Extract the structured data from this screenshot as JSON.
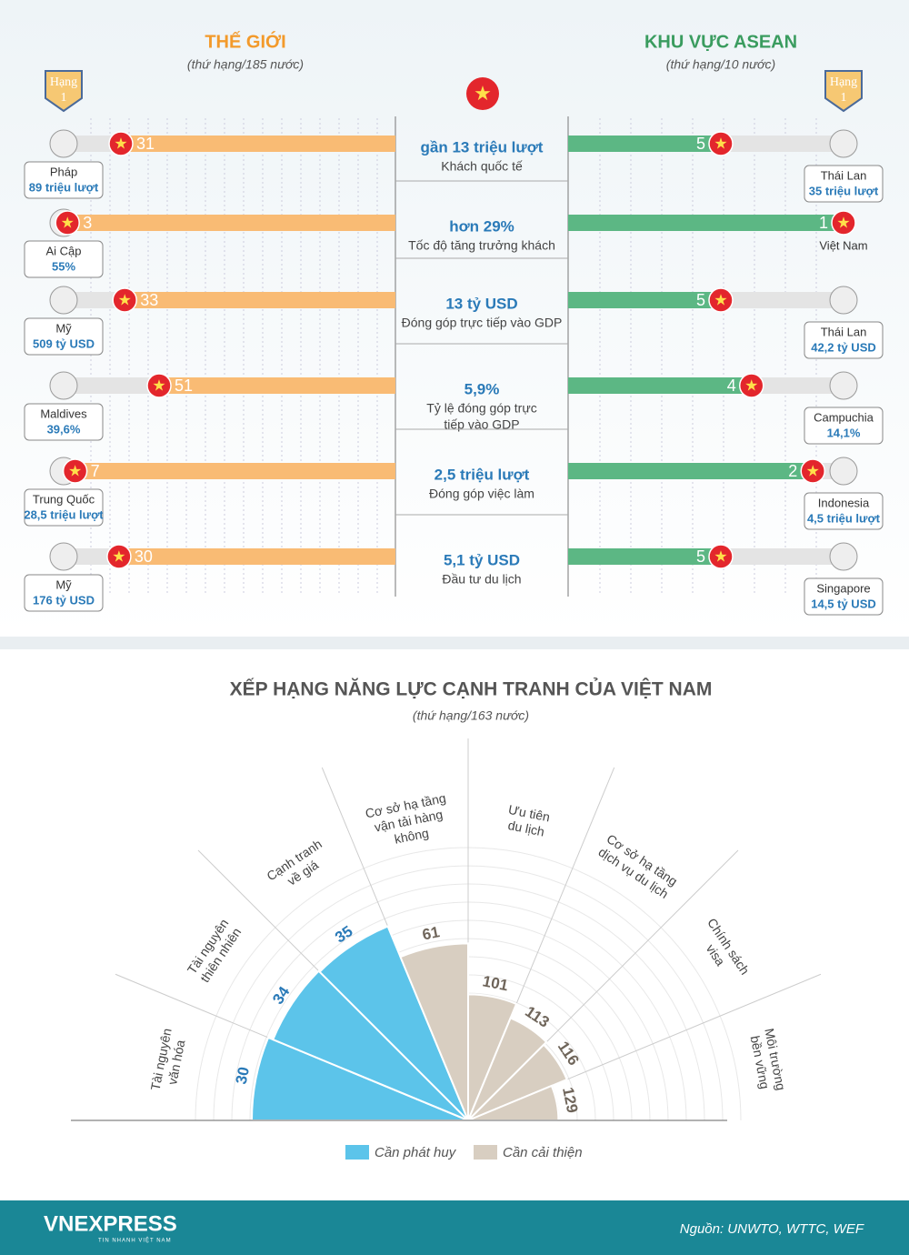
{
  "comparison": {
    "world": {
      "title": "THẾ GIỚI",
      "subtitle": "(thứ hạng/185 nước)"
    },
    "asean": {
      "title": "KHU VỰC ASEAN",
      "subtitle": "(thứ hạng/10 nước)"
    },
    "badge": {
      "label": "Hạng",
      "rank": 1
    },
    "rows": [
      {
        "world_rank": 31,
        "world_country": "Pháp",
        "world_value": "89 triệu lượt",
        "metric_value": "gần 13 triệu lượt",
        "metric": [
          "Khách quốc tế"
        ],
        "asean_rank": 5,
        "asean_country": "Thái Lan",
        "asean_value": "35 triệu lượt"
      },
      {
        "world_rank": 3,
        "world_country": "Ai Cập",
        "world_value": "55%",
        "metric_value": "hơn 29%",
        "metric": [
          "Tốc độ tăng trưởng khách"
        ],
        "asean_rank": 1,
        "asean_country": "Việt Nam"
      },
      {
        "world_rank": 33,
        "world_country": "Mỹ",
        "world_value": "509 tỷ USD",
        "metric_value": "13 tỷ USD",
        "metric": [
          "Đóng góp trực tiếp vào GDP"
        ],
        "asean_rank": 5,
        "asean_country": "Thái Lan",
        "asean_value": "42,2 tỷ USD"
      },
      {
        "world_rank": 51,
        "world_country": "Maldives",
        "world_value": "39,6%",
        "metric_value": "5,9%",
        "metric": [
          "Tỷ lệ đóng góp trực",
          "tiếp vào GDP"
        ],
        "asean_rank": 4,
        "asean_country": "Campuchia",
        "asean_value": "14,1%"
      },
      {
        "world_rank": 7,
        "world_country": "Trung Quốc",
        "world_value": "28,5 triệu lượt",
        "metric_value": "2,5 triệu lượt",
        "metric": [
          "Đóng góp việc làm"
        ],
        "asean_rank": 2,
        "asean_country": "Indonesia",
        "asean_value": "4,5 triệu lượt"
      },
      {
        "world_rank": 30,
        "world_country": "Mỹ",
        "world_value": "176 tỷ USD",
        "metric_value": "5,1 tỷ USD",
        "metric": [
          "Đầu tư du lịch"
        ],
        "asean_rank": 5,
        "asean_country": "Singapore",
        "asean_value": "14,5 tỷ USD"
      }
    ]
  },
  "chart_data": {
    "type": "radial-bar",
    "title": "XẾP HẠNG NĂNG LỰC CẠNH TRANH CỦA VIỆT NAM",
    "subtitle": "(thứ hạng/163 nước)",
    "categories": [
      [
        "Tài nguyên",
        "văn hóa"
      ],
      [
        "Tài nguyên",
        "thiên nhiên"
      ],
      [
        "Cạnh tranh",
        "về giá"
      ],
      [
        "Cơ sở hạ tầng",
        "vận tải hàng",
        "không"
      ],
      [
        "Ưu tiên",
        "du lịch"
      ],
      [
        "Cơ sở hạ tầng",
        "dịch vụ du lịch"
      ],
      [
        "Chính sách",
        "visa"
      ],
      [
        "Môi trường",
        "bền vững"
      ]
    ],
    "series": [
      {
        "name": "Cần phát huy",
        "color": "#5cc4ea",
        "values": [
          30,
          34,
          35,
          null,
          null,
          null,
          null,
          null
        ]
      },
      {
        "name": "Cần cải thiện",
        "color": "#d8cec1",
        "values": [
          null,
          null,
          null,
          61,
          101,
          113,
          116,
          129
        ]
      }
    ]
  },
  "footer": {
    "logo": "VNEXPRESS",
    "tagline": "TIN NHANH VIỆT NAM",
    "source": "Nguồn: UNWTO, WTTC, WEF"
  }
}
